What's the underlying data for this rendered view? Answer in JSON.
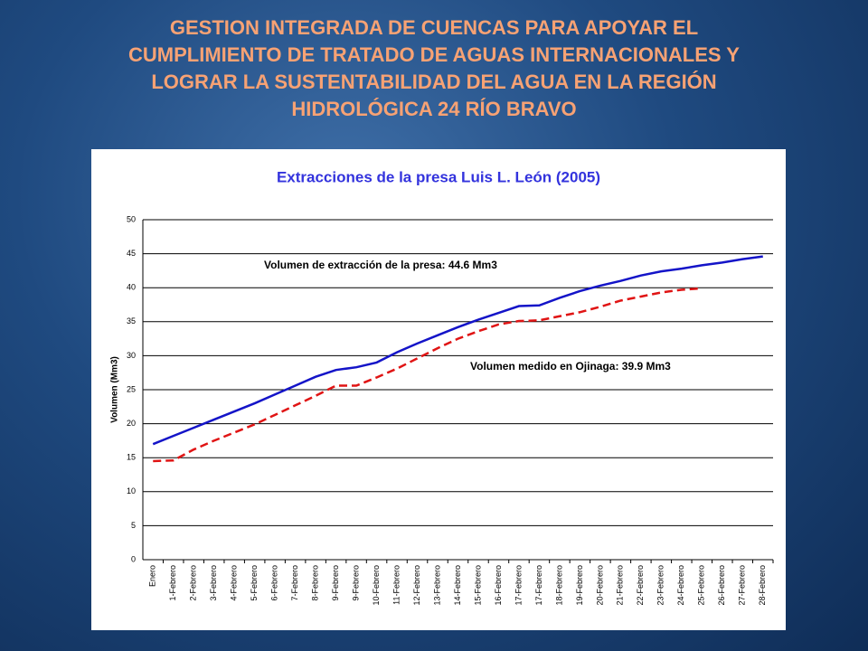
{
  "slide_title_lines": [
    "GESTION INTEGRADA DE CUENCAS PARA APOYAR EL",
    "CUMPLIMIENTO DE TRATADO DE AGUAS INTERNACIONALES Y",
    "LOGRAR LA SUSTENTABILIDAD DEL AGUA EN LA REGIÓN",
    "HIDROLÓGICA 24 RÍO BRAVO"
  ],
  "chart_data": {
    "type": "line",
    "title": "Extracciones de la presa Luis L. León (2005)",
    "y_label": "Volumen (Mm3)",
    "categories": [
      "Enero",
      "1-Febrero",
      "2-Febrero",
      "3-Febrero",
      "4-Febrero",
      "5-Febrero",
      "6-Febrero",
      "7-Febrero",
      "8-Febrero",
      "9-Febrero",
      "9-Febrero",
      "10-Febrero",
      "11-Febrero",
      "12-Febrero",
      "13-Febrero",
      "14-Febrero",
      "15-Febrero",
      "16-Febrero",
      "17-Febrero",
      "17-Febrero",
      "18-Febrero",
      "19-Febrero",
      "20-Febrero",
      "21-Febrero",
      "22-Febrero",
      "23-Febrero",
      "24-Febrero",
      "25-Febrero",
      "26-Febrero",
      "27-Febrero",
      "28-Febrero"
    ],
    "series": [
      {
        "color": "#1414c8",
        "dash": false,
        "values": [
          17,
          18.2,
          19.4,
          20.6,
          21.8,
          23,
          24.3,
          25.6,
          26.9,
          27.9,
          28.3,
          29,
          30.5,
          31.8,
          33,
          34.2,
          35.3,
          36.3,
          37.3,
          37.4,
          38.5,
          39.5,
          40.3,
          41,
          41.8,
          42.4,
          42.8,
          43.3,
          43.7,
          44.2,
          44.6
        ]
      },
      {
        "color": "#e01414",
        "dash": true,
        "values": [
          14.5,
          14.6,
          16.2,
          17.5,
          18.7,
          19.9,
          21.3,
          22.7,
          24.1,
          25.6,
          25.6,
          26.8,
          28.1,
          29.6,
          31.1,
          32.5,
          33.6,
          34.6,
          35.1,
          35.2,
          35.8,
          36.4,
          37.2,
          38.1,
          38.7,
          39.3,
          39.7,
          39.9,
          null,
          null,
          null
        ]
      }
    ],
    "annotations": [
      {
        "text": "Volumen de extracción de la presa: 44.6 Mm3"
      },
      {
        "text": "Volumen medido en Ojinaga: 39.9 Mm3"
      }
    ],
    "ylim": [
      0,
      50
    ],
    "yticks": [
      0,
      5,
      10,
      15,
      20,
      25,
      30,
      35,
      40,
      45,
      50
    ],
    "grid": true
  }
}
